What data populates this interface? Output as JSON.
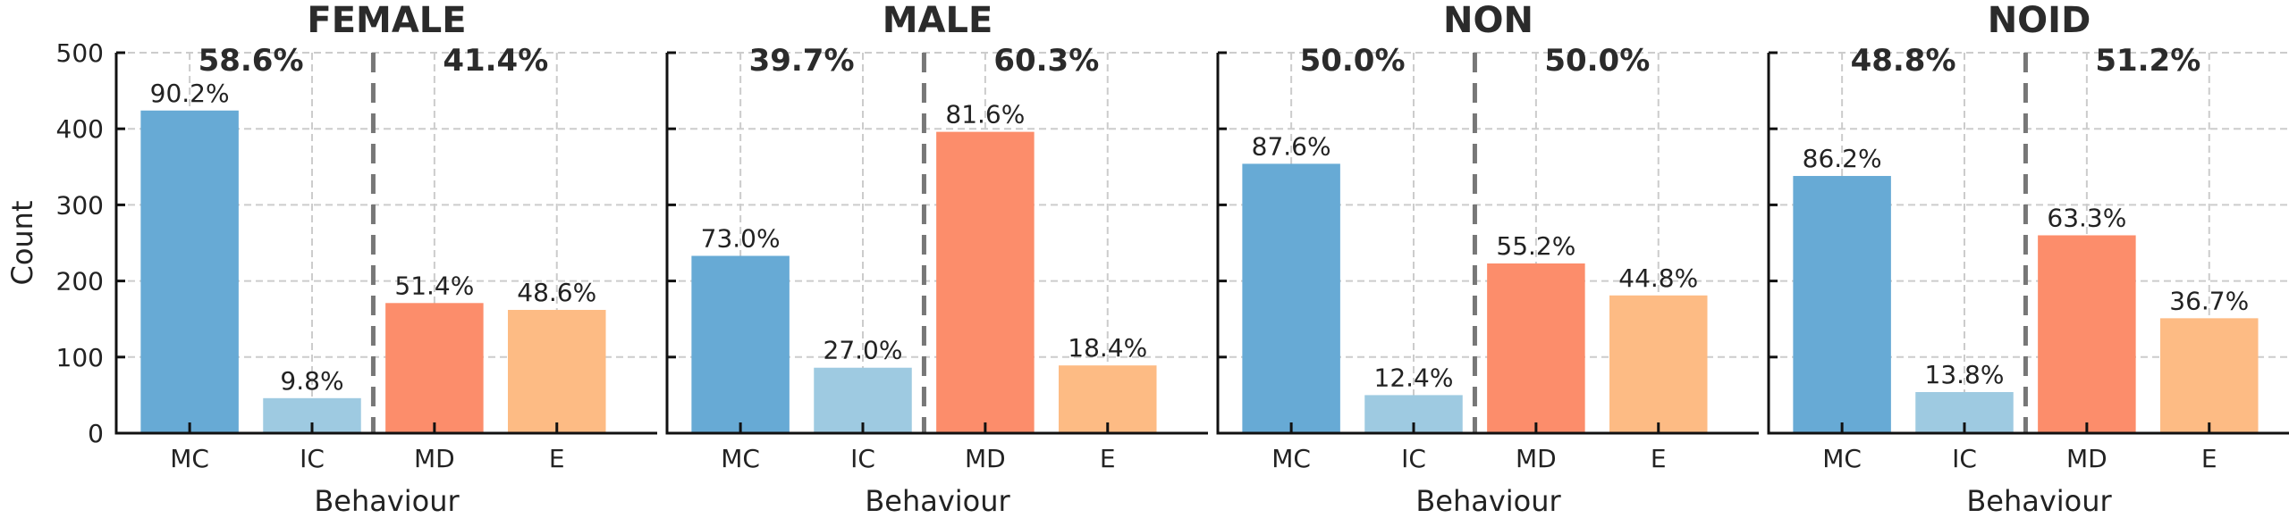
{
  "chart_data": [
    {
      "type": "bar",
      "title": "FEMALE",
      "xlabel": "Behaviour",
      "ylabel": "Count",
      "ylim": [
        0,
        500
      ],
      "yticks": [
        0,
        100,
        200,
        300,
        400,
        500
      ],
      "categories": [
        "MC",
        "IC",
        "MD",
        "E"
      ],
      "values": [
        424,
        46,
        171,
        162
      ],
      "bar_labels": [
        "90.2%",
        "9.8%",
        "51.4%",
        "48.6%"
      ],
      "group_labels": [
        "58.6%",
        "41.4%"
      ]
    },
    {
      "type": "bar",
      "title": "MALE",
      "xlabel": "Behaviour",
      "ylabel": "",
      "ylim": [
        0,
        500
      ],
      "yticks": [
        0,
        100,
        200,
        300,
        400,
        500
      ],
      "categories": [
        "MC",
        "IC",
        "MD",
        "E"
      ],
      "values": [
        233,
        86,
        396,
        89
      ],
      "bar_labels": [
        "73.0%",
        "27.0%",
        "81.6%",
        "18.4%"
      ],
      "group_labels": [
        "39.7%",
        "60.3%"
      ]
    },
    {
      "type": "bar",
      "title": "NON",
      "xlabel": "Behaviour",
      "ylabel": "",
      "ylim": [
        0,
        500
      ],
      "yticks": [
        0,
        100,
        200,
        300,
        400,
        500
      ],
      "categories": [
        "MC",
        "IC",
        "MD",
        "E"
      ],
      "values": [
        354,
        50,
        223,
        181
      ],
      "bar_labels": [
        "87.6%",
        "12.4%",
        "55.2%",
        "44.8%"
      ],
      "group_labels": [
        "50.0%",
        "50.0%"
      ]
    },
    {
      "type": "bar",
      "title": "NOID",
      "xlabel": "Behaviour",
      "ylabel": "",
      "ylim": [
        0,
        500
      ],
      "yticks": [
        0,
        100,
        200,
        300,
        400,
        500
      ],
      "categories": [
        "MC",
        "IC",
        "MD",
        "E"
      ],
      "values": [
        338,
        54,
        260,
        151
      ],
      "bar_labels": [
        "86.2%",
        "13.8%",
        "63.3%",
        "36.7%"
      ],
      "group_labels": [
        "48.8%",
        "51.2%"
      ]
    }
  ],
  "colors": {
    "MC": "#67aad5",
    "IC": "#9ecae1",
    "MD": "#fc8d6b",
    "E": "#fdbb84",
    "divider": "#777777",
    "grid": "#cccccc"
  },
  "grid": true,
  "show_ytick_labels_first_only": true
}
